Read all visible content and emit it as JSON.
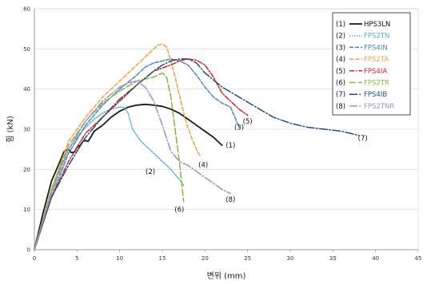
{
  "chart_data": {
    "type": "line",
    "title": "",
    "xlabel": "변위 (mm)",
    "ylabel": "힘 (kN)",
    "xlim": [
      0,
      45
    ],
    "ylim": [
      0,
      60
    ],
    "x_ticks": [
      "0",
      "5",
      "10",
      "15",
      "20",
      "25",
      "30",
      "35",
      "40",
      "45"
    ],
    "y_ticks": [
      "0",
      "10",
      "20",
      "30",
      "40",
      "50",
      "60"
    ],
    "grid": "horizontal",
    "legend_position": "top-right",
    "series": [
      {
        "name": "HPS3LN",
        "number": "(1)",
        "color": "#1a1a1a",
        "dash": "solid",
        "label_at": [
          23.0,
          26.0
        ],
        "points": [
          [
            0,
            0
          ],
          [
            1,
            9
          ],
          [
            2,
            17
          ],
          [
            3,
            22
          ],
          [
            3.5,
            24.5
          ],
          [
            4,
            25
          ],
          [
            4.3,
            24.2
          ],
          [
            4.7,
            24.3
          ],
          [
            5,
            25.5
          ],
          [
            5.4,
            26
          ],
          [
            5.7,
            27
          ],
          [
            6,
            27.2
          ],
          [
            6.3,
            27
          ],
          [
            6.6,
            28
          ],
          [
            7,
            29.5
          ],
          [
            8,
            31
          ],
          [
            9,
            33
          ],
          [
            10,
            34.5
          ],
          [
            11,
            35.5
          ],
          [
            12,
            36
          ],
          [
            13,
            36.2
          ],
          [
            14,
            36
          ],
          [
            15,
            35.7
          ],
          [
            16,
            35
          ],
          [
            17,
            34
          ],
          [
            18,
            32.5
          ],
          [
            19,
            31
          ],
          [
            20,
            29.5
          ],
          [
            21,
            28
          ],
          [
            22,
            26
          ]
        ]
      },
      {
        "name": "FPS2TN",
        "number": "(2)",
        "color": "#4eb3c4",
        "dash": "1.2,1.8",
        "label_at": [
          13.6,
          19.5
        ],
        "points": [
          [
            0,
            0
          ],
          [
            1,
            7
          ],
          [
            2,
            14
          ],
          [
            3,
            20
          ],
          [
            4,
            25
          ],
          [
            5,
            28
          ],
          [
            6,
            30.5
          ],
          [
            7,
            32.5
          ],
          [
            8,
            34
          ],
          [
            9,
            35
          ],
          [
            10,
            35.5
          ],
          [
            10.5,
            35.5
          ],
          [
            11,
            34
          ],
          [
            11.5,
            30
          ],
          [
            12.5,
            27
          ],
          [
            14,
            24
          ],
          [
            15,
            22
          ],
          [
            16,
            20
          ],
          [
            17,
            17.5
          ],
          [
            17.5,
            16
          ]
        ]
      },
      {
        "name": "FPS4IN",
        "number": "(3)",
        "color": "#4a86b8",
        "dash": "5,2",
        "label_at": [
          24.0,
          30.5
        ],
        "points": [
          [
            0,
            0
          ],
          [
            2,
            13
          ],
          [
            4,
            24
          ],
          [
            6,
            31
          ],
          [
            8,
            36
          ],
          [
            10,
            40
          ],
          [
            12,
            43.5
          ],
          [
            13,
            45.5
          ],
          [
            14,
            46.5
          ],
          [
            15,
            47
          ],
          [
            16,
            47.5
          ],
          [
            17,
            47
          ],
          [
            18,
            46
          ],
          [
            19,
            43.5
          ],
          [
            20,
            40.5
          ],
          [
            21,
            38
          ],
          [
            22,
            36.5
          ],
          [
            23,
            35.5
          ],
          [
            23.5,
            33
          ],
          [
            24,
            30.5
          ]
        ]
      },
      {
        "name": "FPS2TA",
        "number": "(4)",
        "color": "#f0a03c",
        "dash": "5,2.5",
        "label_at": [
          19.8,
          21.2
        ],
        "points": [
          [
            0,
            0
          ],
          [
            2,
            15
          ],
          [
            4,
            27
          ],
          [
            6,
            33
          ],
          [
            8,
            38
          ],
          [
            10,
            42
          ],
          [
            12,
            46
          ],
          [
            13,
            48
          ],
          [
            14,
            50
          ],
          [
            14.5,
            51
          ],
          [
            15,
            51.2
          ],
          [
            15.5,
            50.5
          ],
          [
            16,
            47
          ],
          [
            16.5,
            43
          ],
          [
            17,
            38.5
          ],
          [
            17.5,
            34
          ],
          [
            18,
            30.5
          ],
          [
            18.5,
            27.5
          ],
          [
            19,
            25
          ],
          [
            19.5,
            23
          ]
        ]
      },
      {
        "name": "FPS4IA",
        "number": "(5)",
        "color": "#dc1e1e",
        "dash": "6,2,1.5,2",
        "label_at": [
          25.0,
          32.0
        ],
        "points": [
          [
            0,
            0
          ],
          [
            2,
            13
          ],
          [
            4,
            22
          ],
          [
            6,
            29
          ],
          [
            8,
            33
          ],
          [
            10,
            37
          ],
          [
            12,
            41
          ],
          [
            14,
            44.5
          ],
          [
            16,
            46
          ],
          [
            17,
            47
          ],
          [
            18,
            47.5
          ],
          [
            19,
            47.2
          ],
          [
            20,
            46
          ],
          [
            21,
            43
          ],
          [
            21.5,
            41
          ],
          [
            22,
            39
          ],
          [
            23,
            37
          ],
          [
            24,
            35
          ],
          [
            25,
            33.5
          ]
        ]
      },
      {
        "name": "FPS2TR",
        "number": "(6)",
        "color": "#8cb43c",
        "dash": "8,3",
        "label_at": [
          17.0,
          10.0
        ],
        "points": [
          [
            0,
            0
          ],
          [
            2,
            15
          ],
          [
            4,
            26
          ],
          [
            6,
            32
          ],
          [
            8,
            36.5
          ],
          [
            10,
            39.5
          ],
          [
            12,
            42
          ],
          [
            14,
            43
          ],
          [
            15,
            44
          ],
          [
            15.5,
            43
          ],
          [
            16,
            38
          ],
          [
            16.5,
            30
          ],
          [
            17,
            22
          ],
          [
            17.3,
            16
          ],
          [
            17.5,
            12
          ]
        ]
      },
      {
        "name": "FPS4IB",
        "number": "(7)",
        "color": "#1f4e79",
        "dash": "10,2.5,1.5,2.5",
        "label_at": [
          38.5,
          27.8
        ],
        "points": [
          [
            0,
            0
          ],
          [
            2,
            13
          ],
          [
            4,
            21
          ],
          [
            6,
            28
          ],
          [
            8,
            33
          ],
          [
            10,
            37.5
          ],
          [
            12,
            41
          ],
          [
            14,
            44.5
          ],
          [
            15,
            46
          ],
          [
            16,
            47
          ],
          [
            17,
            47.5
          ],
          [
            18,
            47.5
          ],
          [
            19,
            46.5
          ],
          [
            20,
            44
          ],
          [
            22,
            40.5
          ],
          [
            24,
            38
          ],
          [
            26,
            35.5
          ],
          [
            28,
            33
          ],
          [
            30,
            31.5
          ],
          [
            32,
            30.5
          ],
          [
            34,
            30
          ],
          [
            36,
            29.5
          ],
          [
            38,
            28.5
          ]
        ]
      },
      {
        "name": "FPS2TNR",
        "number": "(8)",
        "color": "#9e8fc4",
        "dash": "10,2.5,1.5,2.5",
        "label_at": [
          23.0,
          12.5
        ],
        "points": [
          [
            0,
            0
          ],
          [
            2,
            14
          ],
          [
            4,
            25
          ],
          [
            6,
            32
          ],
          [
            8,
            37
          ],
          [
            10,
            40.5
          ],
          [
            11,
            41.5
          ],
          [
            12,
            42
          ],
          [
            13,
            40.5
          ],
          [
            14,
            37
          ],
          [
            15,
            31
          ],
          [
            16,
            24.5
          ],
          [
            17,
            22
          ],
          [
            18,
            21
          ],
          [
            19,
            19.5
          ],
          [
            20,
            18
          ],
          [
            21,
            16.5
          ],
          [
            22,
            15
          ],
          [
            23,
            14
          ]
        ]
      }
    ]
  }
}
